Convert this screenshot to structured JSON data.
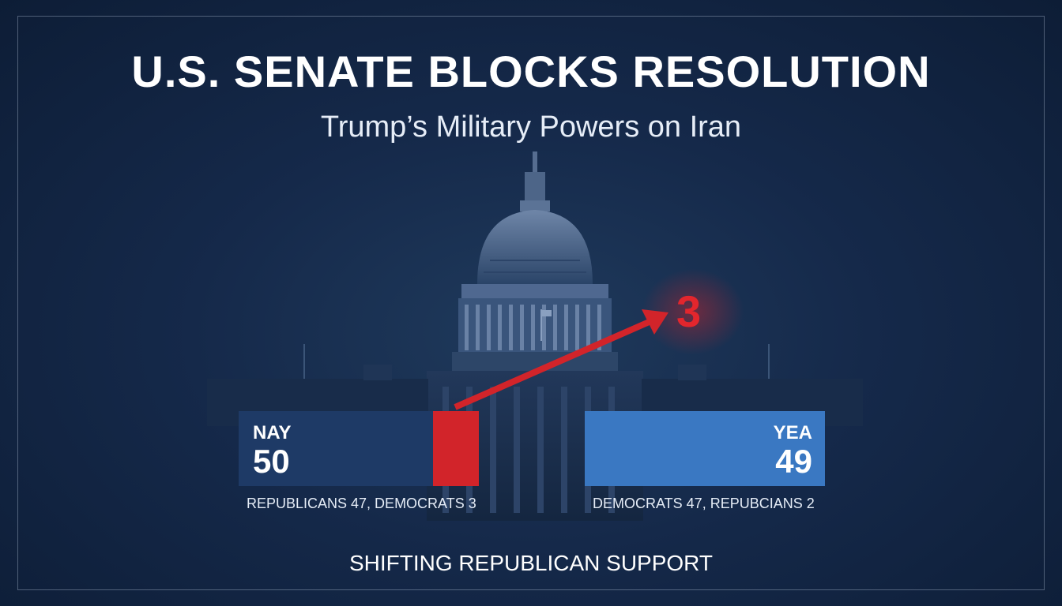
{
  "header": {
    "headline": "U.S. SENATE BLOCKS RESOLUTION",
    "subheadline": "Trump’s Military Powers on Iran"
  },
  "vote": {
    "nay": {
      "label": "NAY",
      "count": "50",
      "breakdown": "REPUBLICANS 47, DEMOCRATS 3",
      "color": "#1e3a66"
    },
    "yea": {
      "label": "YEA",
      "count": "49",
      "breakdown": "DEMOCRATS 47, REPUBCIANS 2",
      "color": "#3a78c2"
    },
    "shift": {
      "value": "3",
      "color": "#d2242a"
    }
  },
  "footer": {
    "caption": "SHIFTING REPUBLICAN SUPPORT"
  }
}
